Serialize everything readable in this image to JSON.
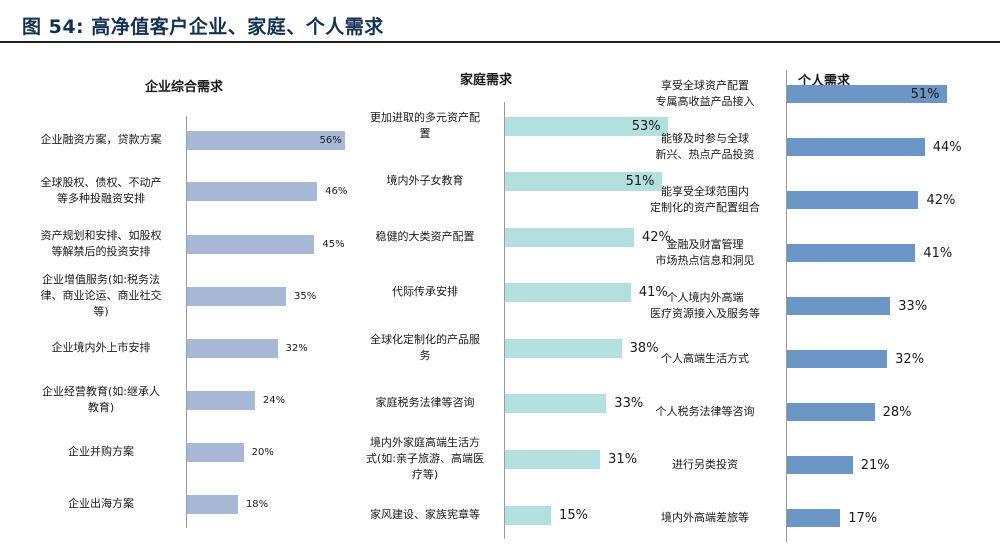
{
  "figure_title": "图 54: 高净值客户企业、家庭、个人需求",
  "chart_data": [
    {
      "type": "bar",
      "orientation": "horizontal",
      "title": "企业综合需求",
      "categories": [
        "企业融资方案，贷款方案",
        "全球股权、债权、不动产等多种投融资安排",
        "资产规划和安排、如股权等解禁后的投资安排",
        "企业增值服务(如:税务法律、商业论运、商业社交等)",
        "企业境内外上市安排",
        "企业经营教育(如:继承人教育)",
        "企业并购方案",
        "企业出海方案"
      ],
      "values": [
        56,
        46,
        45,
        35,
        32,
        24,
        20,
        18
      ],
      "labels": [
        "56%",
        "46%",
        "45%",
        "35%",
        "32%",
        "24%",
        "20%",
        "18%"
      ],
      "xlim": [
        0,
        60
      ],
      "color": "#a8b9d6"
    },
    {
      "type": "bar",
      "orientation": "horizontal",
      "title": "家庭需求",
      "categories": [
        "更加进取的多元资产配置",
        "境内外子女教育",
        "稳健的大类资产配置",
        "代际传承安排",
        "全球化定制化的产品服务",
        "家庭税务法律等咨询",
        "境内外家庭高端生活方式(如:亲子旅游、高端医疗等)",
        "家风建设、家族宪章等"
      ],
      "values": [
        53,
        51,
        42,
        41,
        38,
        33,
        31,
        15
      ],
      "labels": [
        "53%",
        "51%",
        "42%",
        "41%",
        "38%",
        "33%",
        "31%",
        "15%"
      ],
      "xlim": [
        0,
        60
      ],
      "color": "#b3e0df"
    },
    {
      "type": "bar",
      "orientation": "horizontal",
      "title": "个人需求",
      "categories": [
        "享受全球资产配置专属高收益产品接入",
        "能够及时参与全球新兴、热点产品投资",
        "能享受全球范围内定制化的资产配置组合",
        "金融及财富管理市场热点信息和洞见",
        "个人境内外高端医疗资源接入及服务等",
        "个人高端生活方式",
        "个人税务法律等咨询",
        "进行另类投资",
        "境内外高端差旅等"
      ],
      "values": [
        51,
        44,
        42,
        41,
        33,
        32,
        28,
        21,
        17
      ],
      "labels": [
        "51%",
        "44%",
        "42%",
        "41%",
        "33%",
        "32%",
        "28%",
        "21%",
        "17%"
      ],
      "xlim": [
        0,
        60
      ],
      "color": "#6b96c6"
    }
  ],
  "panels": [
    {
      "title": "企业综合需求",
      "rows": [
        {
          "lines": [
            "企业融资方案，贷款方案"
          ],
          "label": "56%"
        },
        {
          "lines": [
            "全球股权、债权、不动产",
            "等多种投融资安排"
          ],
          "label": "46%"
        },
        {
          "lines": [
            "资产规划和安排、如股权",
            "等解禁后的投资安排"
          ],
          "label": "45%"
        },
        {
          "lines": [
            "企业增值服务(如:税务法",
            "律、商业论运、商业社交",
            "等)"
          ],
          "label": "35%"
        },
        {
          "lines": [
            "企业境内外上市安排"
          ],
          "label": "32%"
        },
        {
          "lines": [
            "企业经营教育(如:继承人",
            "教育)"
          ],
          "label": "24%"
        },
        {
          "lines": [
            "企业并购方案"
          ],
          "label": "20%"
        },
        {
          "lines": [
            "企业出海方案"
          ],
          "label": "18%"
        }
      ]
    },
    {
      "title": "家庭需求",
      "rows": [
        {
          "lines": [
            "更加进取的多元资产配",
            "置"
          ],
          "label": "53%"
        },
        {
          "lines": [
            "境内外子女教育"
          ],
          "label": "51%"
        },
        {
          "lines": [
            "稳健的大类资产配置"
          ],
          "label": "42%"
        },
        {
          "lines": [
            "代际传承安排"
          ],
          "label": "41%"
        },
        {
          "lines": [
            "全球化定制化的产品服",
            "务"
          ],
          "label": "38%"
        },
        {
          "lines": [
            "家庭税务法律等咨询"
          ],
          "label": "33%"
        },
        {
          "lines": [
            "境内外家庭高端生活方",
            "式(如:亲子旅游、高端医",
            "疗等)"
          ],
          "label": "31%"
        },
        {
          "lines": [
            "家风建设、家族宪章等"
          ],
          "label": "15%"
        }
      ]
    },
    {
      "title": "个人需求",
      "rows": [
        {
          "lines": [
            "享受全球资产配置",
            "专属高收益产品接入"
          ],
          "label": "51%"
        },
        {
          "lines": [
            "能够及时参与全球",
            "新兴、热点产品投资"
          ],
          "label": "44%"
        },
        {
          "lines": [
            "能享受全球范围内",
            "定制化的资产配置组合"
          ],
          "label": "42%"
        },
        {
          "lines": [
            "金融及财富管理",
            "市场热点信息和洞见"
          ],
          "label": "41%"
        },
        {
          "lines": [
            "个人境内外高端",
            "医疗资源接入及服务等"
          ],
          "label": "33%"
        },
        {
          "lines": [
            "个人高端生活方式"
          ],
          "label": "32%"
        },
        {
          "lines": [
            "个人税务法律等咨询"
          ],
          "label": "28%"
        },
        {
          "lines": [
            "进行另类投资"
          ],
          "label": "21%"
        },
        {
          "lines": [
            "境内外高端差旅等"
          ],
          "label": "17%"
        }
      ]
    }
  ]
}
